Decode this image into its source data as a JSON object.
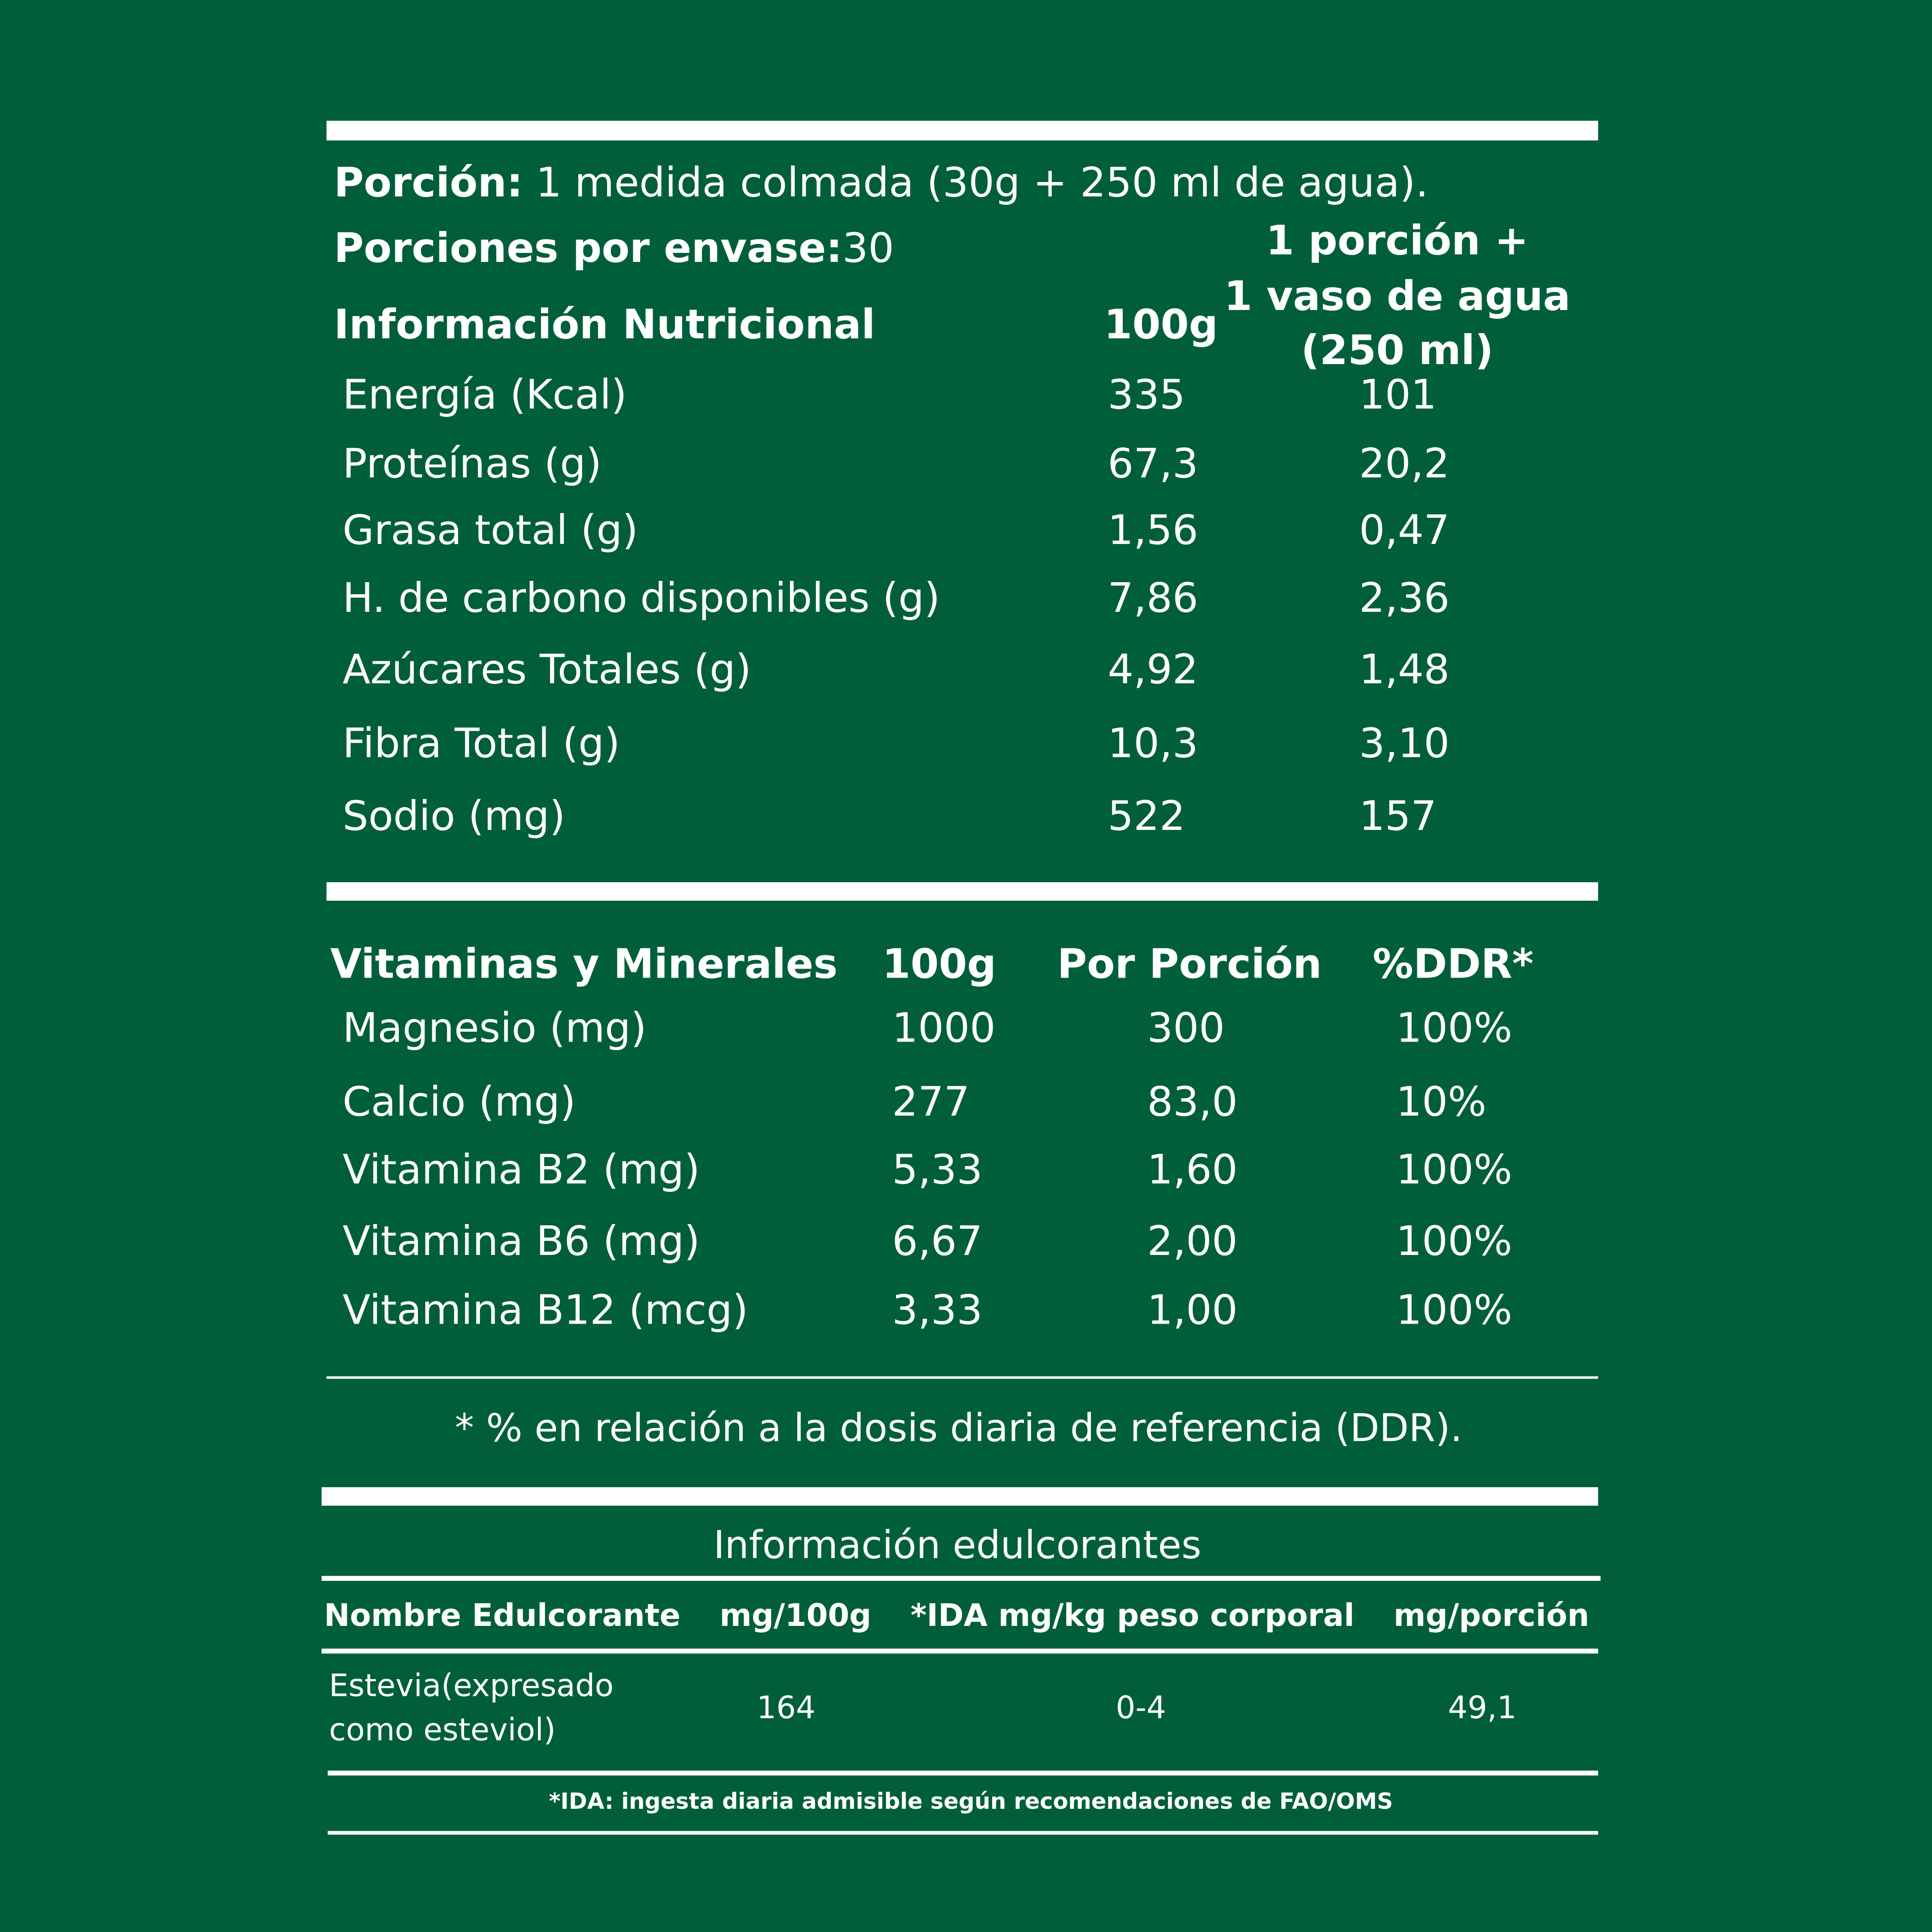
{
  "colors": {
    "background": "#005f3a",
    "foreground": "#ffffff"
  },
  "serving": {
    "label": "Porción:",
    "value": "1 medida colmada (30g + 250 ml de agua).",
    "per_package_label": "Porciones por envase:",
    "per_package_value": "30"
  },
  "nutrition": {
    "title": "Información Nutricional",
    "col_100g": "100g",
    "col_portion": [
      "1 porción +",
      "1 vaso de agua",
      "(250 ml)"
    ],
    "rows": [
      {
        "name": "Energía (Kcal)",
        "per100": "335",
        "portion": "101"
      },
      {
        "name": "Proteínas (g)",
        "per100": "67,3",
        "portion": "20,2"
      },
      {
        "name": "Grasa total (g)",
        "per100": "1,56",
        "portion": "0,47"
      },
      {
        "name": "H. de carbono disponibles (g)",
        "per100": "7,86",
        "portion": "2,36"
      },
      {
        "name": "Azúcares Totales (g)",
        "per100": "4,92",
        "portion": "1,48"
      },
      {
        "name": "Fibra Total (g)",
        "per100": "10,3",
        "portion": "3,10"
      },
      {
        "name": "Sodio (mg)",
        "per100": "522",
        "portion": "157"
      }
    ]
  },
  "vitamins": {
    "title": "Vitaminas y Minerales",
    "col_100g": "100g",
    "col_portion": "Por Porción",
    "col_ddr": "%DDR*",
    "rows": [
      {
        "name": "Magnesio (mg)",
        "per100": "1000",
        "portion": "300",
        "ddr": "100%"
      },
      {
        "name": "Calcio (mg)",
        "per100": "277",
        "portion": "83,0",
        "ddr": "10%"
      },
      {
        "name": "Vitamina B2 (mg)",
        "per100": "5,33",
        "portion": "1,60",
        "ddr": "100%"
      },
      {
        "name": "Vitamina B6 (mg)",
        "per100": "6,67",
        "portion": "2,00",
        "ddr": "100%"
      },
      {
        "name": "Vitamina B12 (mcg)",
        "per100": "3,33",
        "portion": "1,00",
        "ddr": "100%"
      }
    ],
    "footnote": "* % en relación a la dosis diaria de referencia (DDR)."
  },
  "sweeteners": {
    "title": "Información edulcorantes",
    "headers": [
      "Nombre Edulcorante",
      "mg/100g",
      "*IDA mg/kg peso corporal",
      "mg/porción"
    ],
    "row": {
      "name": [
        "Estevia(expresado",
        "como esteviol)"
      ],
      "per100": "164",
      "ida": "0-4",
      "portion": "49,1"
    },
    "footnote": "*IDA: ingesta diaria admisible según recomendaciones de FAO/OMS"
  }
}
